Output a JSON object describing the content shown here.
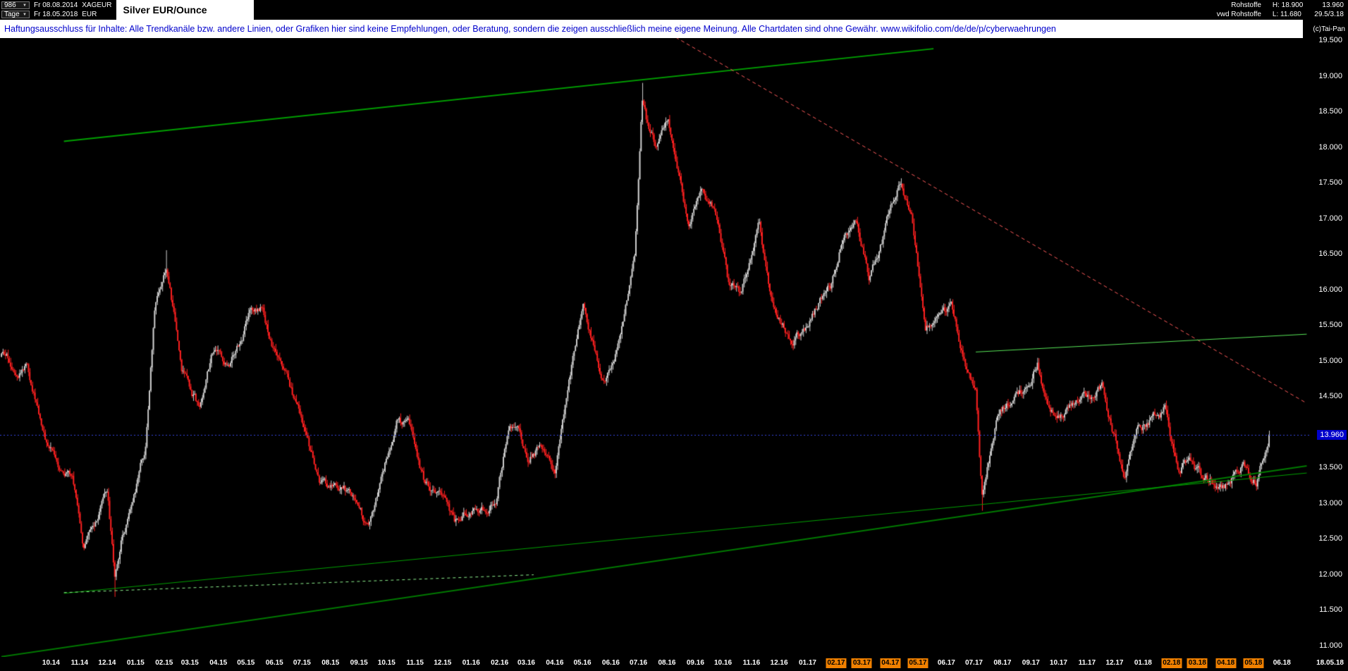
{
  "icons": {
    "dropdown_arrow": "▼"
  },
  "topbar": {
    "bars_count": "986",
    "timeframe": "Tage",
    "date_from": "Fr 08.08.2014",
    "date_to": "Fr 18.05.2018",
    "symbol": "XAGEUR",
    "currency": "EUR",
    "feed_line1": "Rohstoffe",
    "feed_line2": "vwd Rohstoffe",
    "high_label": "H: 18.900",
    "low_label": "L: 11.680",
    "last_price": "13.960",
    "extra_info": "29.5/3.18"
  },
  "disclaimer_text": "Haftungsausschluss für Inhalte: Alle Trendkanäle bzw. andere Linien, oder Grafiken hier sind keine Empfehlungen, oder Beratung, sondern die zeigen ausschließlich meine eigene Meinung. Alle Chartdaten sind ohne Gewähr.  www.wikifolio.com/de/de/p/cyberwaehrungen",
  "copyright": "(c)Tai-Pan",
  "last_date_label": "18.05.18",
  "chart_data": {
    "type": "candlestick",
    "title": "Silver EUR/Ounce",
    "symbol": "XAGEUR",
    "timeframe": "daily",
    "bars": 986,
    "date_start": "2014-08-08",
    "date_end": "2018-05-18",
    "period_high": 18.9,
    "period_low": 11.68,
    "current_price": 13.96,
    "current_price_label": "13.960",
    "y_axis": {
      "min": 11.0,
      "max": 19.5,
      "step": 0.5,
      "decimals": 3
    },
    "x_labels": [
      "10.14",
      "11.14",
      "12.14",
      "01.15",
      "02.15",
      "03.15",
      "04.15",
      "05.15",
      "06.15",
      "07.15",
      "08.15",
      "09.15",
      "10.15",
      "11.15",
      "12.15",
      "01.16",
      "02.16",
      "03.16",
      "04.16",
      "05.16",
      "06.16",
      "07.16",
      "08.16",
      "09.16",
      "10.16",
      "11.16",
      "12.16",
      "01.17",
      "02.17",
      "03.17",
      "04.17",
      "05.17",
      "06.17",
      "07.17",
      "08.17",
      "09.17",
      "10.17",
      "11.17",
      "12.17",
      "01.18",
      "02.18",
      "03.18",
      "04.18",
      "05.18",
      "06.18"
    ],
    "x_labels_highlighted": [
      "02.17",
      "03.17",
      "04.17",
      "05.17",
      "02.18",
      "03.18",
      "04.18",
      "05.18"
    ],
    "monthly_anchors": [
      [
        "2014-08-08",
        15.05
      ],
      [
        "2014-08-20",
        14.9
      ],
      [
        "2014-09-05",
        15.0
      ],
      [
        "2014-09-25",
        13.95
      ],
      [
        "2014-10-10",
        13.6
      ],
      [
        "2014-10-24",
        13.35
      ],
      [
        "2014-11-05",
        12.45
      ],
      [
        "2014-11-20",
        12.65
      ],
      [
        "2014-12-01",
        13.1
      ],
      [
        "2014-12-05",
        12.5
      ],
      [
        "2014-12-09",
        11.9
      ],
      [
        "2014-12-16",
        12.45
      ],
      [
        "2015-01-12",
        13.8
      ],
      [
        "2015-01-22",
        15.8
      ],
      [
        "2015-02-03",
        16.4
      ],
      [
        "2015-02-20",
        14.9
      ],
      [
        "2015-03-11",
        14.35
      ],
      [
        "2015-03-25",
        15.15
      ],
      [
        "2015-04-10",
        14.9
      ],
      [
        "2015-04-24",
        15.2
      ],
      [
        "2015-05-06",
        15.7
      ],
      [
        "2015-05-18",
        15.8
      ],
      [
        "2015-06-03",
        15.05
      ],
      [
        "2015-06-19",
        14.55
      ],
      [
        "2015-07-07",
        14.0
      ],
      [
        "2015-07-20",
        13.3
      ],
      [
        "2015-08-05",
        13.15
      ],
      [
        "2015-08-26",
        13.05
      ],
      [
        "2015-09-10",
        12.6
      ],
      [
        "2015-09-25",
        13.3
      ],
      [
        "2015-10-14",
        14.25
      ],
      [
        "2015-10-28",
        14.05
      ],
      [
        "2015-11-10",
        13.35
      ],
      [
        "2015-11-24",
        13.2
      ],
      [
        "2015-12-14",
        12.6
      ],
      [
        "2015-12-29",
        12.85
      ],
      [
        "2016-01-14",
        12.9
      ],
      [
        "2016-01-28",
        13.1
      ],
      [
        "2016-02-11",
        14.1
      ],
      [
        "2016-02-24",
        13.85
      ],
      [
        "2016-03-02",
        13.55
      ],
      [
        "2016-03-17",
        13.85
      ],
      [
        "2016-04-01",
        13.5
      ],
      [
        "2016-04-20",
        15.0
      ],
      [
        "2016-05-02",
        15.8
      ],
      [
        "2016-05-24",
        14.7
      ],
      [
        "2016-06-09",
        15.25
      ],
      [
        "2016-06-27",
        16.3
      ],
      [
        "2016-07-05",
        18.5
      ],
      [
        "2016-07-12",
        18.1
      ],
      [
        "2016-07-21",
        17.9
      ],
      [
        "2016-08-02",
        18.35
      ],
      [
        "2016-08-12",
        17.6
      ],
      [
        "2016-08-25",
        16.9
      ],
      [
        "2016-09-07",
        17.45
      ],
      [
        "2016-09-22",
        17.1
      ],
      [
        "2016-10-06",
        16.05
      ],
      [
        "2016-10-20",
        15.9
      ],
      [
        "2016-11-09",
        16.85
      ],
      [
        "2016-11-25",
        15.6
      ],
      [
        "2016-12-15",
        15.3
      ],
      [
        "2016-12-29",
        15.45
      ],
      [
        "2017-01-16",
        15.9
      ],
      [
        "2017-01-26",
        16.05
      ],
      [
        "2017-02-08",
        16.75
      ],
      [
        "2017-02-23",
        16.95
      ],
      [
        "2017-03-09",
        16.2
      ],
      [
        "2017-03-28",
        16.9
      ],
      [
        "2017-04-13",
        17.45
      ],
      [
        "2017-04-24",
        17.0
      ],
      [
        "2017-05-09",
        15.45
      ],
      [
        "2017-05-24",
        15.55
      ],
      [
        "2017-06-06",
        15.6
      ],
      [
        "2017-06-21",
        14.9
      ],
      [
        "2017-07-03",
        14.5
      ],
      [
        "2017-07-10",
        13.0
      ],
      [
        "2017-07-25",
        14.15
      ],
      [
        "2017-08-10",
        14.45
      ],
      [
        "2017-08-29",
        14.6
      ],
      [
        "2017-09-08",
        15.0
      ],
      [
        "2017-09-21",
        14.35
      ],
      [
        "2017-10-06",
        14.2
      ],
      [
        "2017-10-20",
        14.5
      ],
      [
        "2017-11-08",
        14.45
      ],
      [
        "2017-11-17",
        14.6
      ],
      [
        "2017-12-12",
        13.45
      ],
      [
        "2017-12-28",
        14.05
      ],
      [
        "2018-01-15",
        14.25
      ],
      [
        "2018-01-25",
        14.35
      ],
      [
        "2018-02-08",
        13.5
      ],
      [
        "2018-02-20",
        13.65
      ],
      [
        "2018-03-07",
        13.35
      ],
      [
        "2018-03-20",
        13.3
      ],
      [
        "2018-04-04",
        13.3
      ],
      [
        "2018-04-18",
        13.55
      ],
      [
        "2018-04-27",
        13.4
      ],
      [
        "2018-05-04",
        13.35
      ],
      [
        "2018-05-11",
        13.7
      ],
      [
        "2018-05-18",
        13.96
      ]
    ],
    "extremes": [
      [
        "2014-12-09",
        "low",
        11.68
      ],
      [
        "2015-02-03",
        "high",
        16.55
      ],
      [
        "2016-07-05",
        "high",
        18.9
      ],
      [
        "2017-04-13",
        "high",
        17.56
      ],
      [
        "2017-07-10",
        "low",
        12.89
      ]
    ],
    "trend_lines": [
      {
        "name": "rising-channel-top",
        "color": "#00a000",
        "width": 2,
        "dash": null,
        "from": [
          "2014-10-15",
          18.08
        ],
        "to": [
          "2017-05-18",
          19.38
        ]
      },
      {
        "name": "falling-resistance",
        "color": "#ff5a5a",
        "width": 1,
        "dash": [
          5,
          4
        ],
        "from": [
          "2016-05-01",
          20.3
        ],
        "to": [
          "2018-06-28",
          14.4
        ]
      },
      {
        "name": "major-rising-support",
        "color": "#007a00",
        "width": 2,
        "dash": null,
        "from": [
          "2014-08-08",
          10.84
        ],
        "to": [
          "2018-06-28",
          13.52
        ]
      },
      {
        "name": "secondary-rising-support",
        "color": "#00a000",
        "width": 1,
        "dash": null,
        "from": [
          "2014-10-15",
          11.73
        ],
        "to": [
          "2018-06-28",
          13.42
        ]
      },
      {
        "name": "base-dashed-support",
        "color": "#8cf08c",
        "width": 1,
        "dash": [
          4,
          4
        ],
        "from": [
          "2014-10-15",
          11.74
        ],
        "to": [
          "2016-03-09",
          11.99
        ]
      },
      {
        "name": "minor-resistance-right",
        "color": "#57e657",
        "width": 1,
        "dash": null,
        "from": [
          "2017-07-03",
          15.12
        ],
        "to": [
          "2018-06-28",
          15.37
        ]
      }
    ],
    "current_price_line": {
      "price": 13.96,
      "color": "#3344dd",
      "style": "dotted"
    },
    "colors": {
      "up": "#cfcfcf",
      "down": "#ff2020",
      "background": "#000000",
      "axis_text": "#ffffff",
      "label_highlight": "#f08000",
      "price_tag_bg": "#0000cc"
    }
  }
}
